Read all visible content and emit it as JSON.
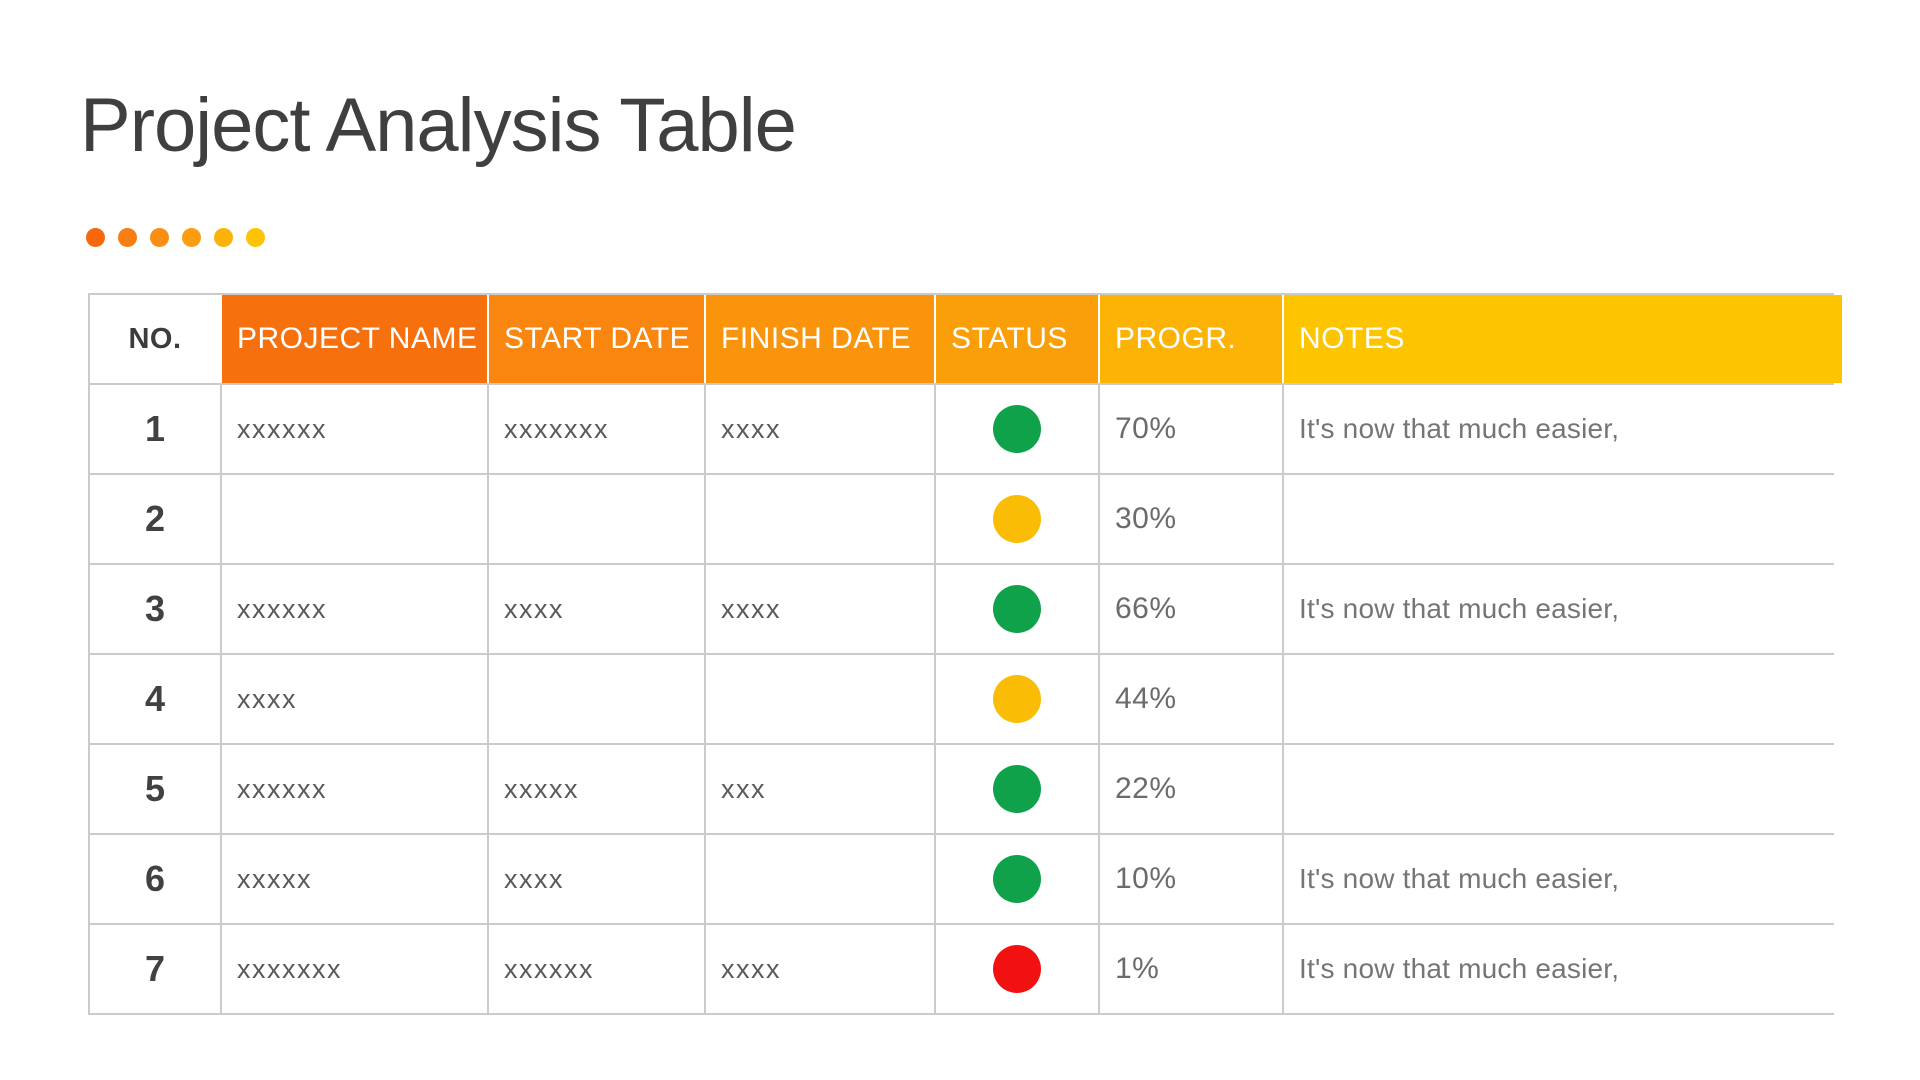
{
  "header": {
    "title": "Project Analysis Table",
    "title_color": "#3F3F3F",
    "accent_dots": [
      {
        "color": "#F7670D"
      },
      {
        "color": "#F87D12"
      },
      {
        "color": "#F98E13"
      },
      {
        "color": "#FA9D10"
      },
      {
        "color": "#FCB309"
      },
      {
        "color": "#FDC406"
      }
    ]
  },
  "table": {
    "border_color": "#CBCBCB",
    "columns": [
      {
        "key": "no",
        "label": "NO.",
        "bg": "#FFFFFF",
        "text_color": "#3C3C3C"
      },
      {
        "key": "project_name",
        "label": "PROJECT NAME",
        "bg": "#F7700E",
        "text_color": "#FFFFFF"
      },
      {
        "key": "start_date",
        "label": "START DATE",
        "bg": "#F8860F",
        "text_color": "#FFFFFF"
      },
      {
        "key": "finish_date",
        "label": "FINISH DATE",
        "bg": "#F9940C",
        "text_color": "#FFFFFF"
      },
      {
        "key": "status",
        "label": "STATUS",
        "bg": "#FA9F0A",
        "text_color": "#FFFFFF"
      },
      {
        "key": "progress",
        "label": "PROGR.",
        "bg": "#FCB305",
        "text_color": "#FFFFFF"
      },
      {
        "key": "notes",
        "label": "NOTES",
        "bg": "#FDC500",
        "text_color": "#FFFFFF"
      }
    ],
    "status_colors": {
      "green": "#10A24B",
      "yellow": "#FBBC05",
      "red": "#F21111"
    },
    "rows": [
      {
        "no": "1",
        "project_name": "xxxxxx",
        "start_date": "xxxxxxx",
        "finish_date": "xxxx",
        "status": "green",
        "progress": "70%",
        "notes": "It's now that much easier,"
      },
      {
        "no": "2",
        "project_name": "",
        "start_date": "",
        "finish_date": "",
        "status": "yellow",
        "progress": "30%",
        "notes": ""
      },
      {
        "no": "3",
        "project_name": "xxxxxx",
        "start_date": "xxxx",
        "finish_date": "xxxx",
        "status": "green",
        "progress": "66%",
        "notes": "It's now that much easier,"
      },
      {
        "no": "4",
        "project_name": "xxxx",
        "start_date": "",
        "finish_date": "",
        "status": "yellow",
        "progress": "44%",
        "notes": ""
      },
      {
        "no": "5",
        "project_name": "xxxxxx",
        "start_date": "xxxxx",
        "finish_date": "xxx",
        "status": "green",
        "progress": "22%",
        "notes": ""
      },
      {
        "no": "6",
        "project_name": "xxxxx",
        "start_date": "xxxx",
        "finish_date": "",
        "status": "green",
        "progress": "10%",
        "notes": "It's now that much easier,"
      },
      {
        "no": "7",
        "project_name": "xxxxxxx",
        "start_date": "xxxxxx",
        "finish_date": "xxxx",
        "status": "red",
        "progress": "1%",
        "notes": "It's now that much easier,"
      }
    ]
  }
}
